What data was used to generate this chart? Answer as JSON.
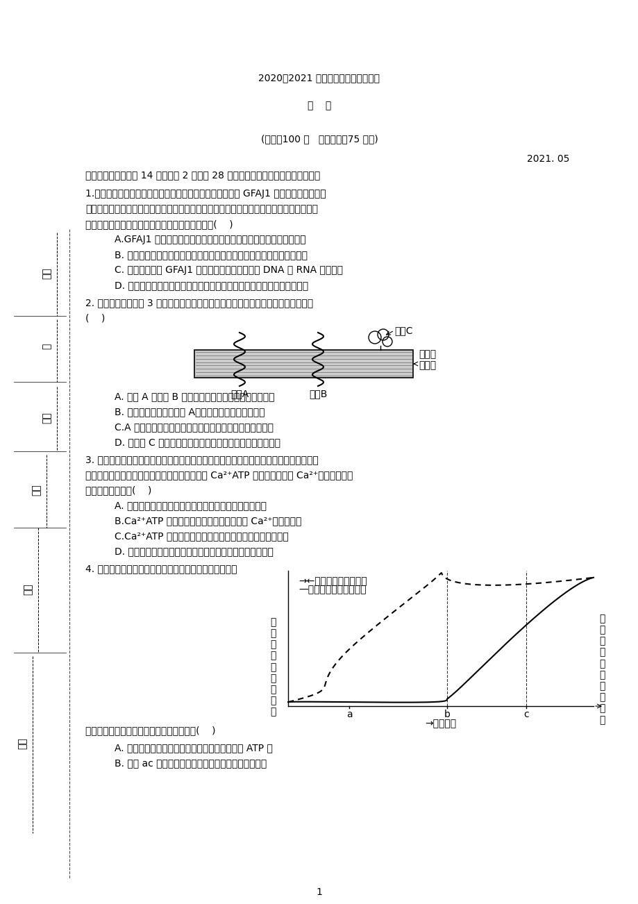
{
  "bg_color": [
    255,
    255,
    255
  ],
  "title1": "2020～2021 学年高三年级模拟考试卷",
  "title2": "生    物",
  "subtitle": "(满分：100 分   考试时间：75 分钟)",
  "date": "2021. 05",
  "page_num": "1",
  "left_labels": [
    "学号",
    "级",
    "姓名",
    "班级",
    "学校",
    "区县"
  ],
  "section1_bold": "一、单项选择题：共 14 题，每题 2 分，共 28 分。每题只有一个选项最符合题意。",
  "q1_lines": [
    "1.科学家在加利福尼亚州东部的莫诺湖里发现了一种被称作 GFAJ1 的细菌，这种细菌能",
    "利用牀来代替磷元素构筑生命分子，进行一些关键的生化反应。已知在元素周期表中，牀排",
    "在磷下方，两者化学性质相似。下列叙述错误的是(    )"
  ],
  "q1_opts": [
    "A.GFAJ1 细菌中含量较多的六种元素可能是碳、氢、氧、氮、牀、硫",
    "B. 牀对多数生物有毒，可能是因为牀能夠替代磷参与生化反应，导致混乱",
    "C. 牀元素存在于 GFAJ1 细菌细胞膜、核糖体以及 DNA 和 RNA 等物质中",
    "D. 该细菌的分泌蛋白在核糖体上合成后，需经过内质网和高尔基体的加工"
  ],
  "q2_line1": "2. 下图表示细胞膜上 3 种膜蛋白与磷脂双分子层之间的位置关系。下列叙述正确的是",
  "q2_bracket": "(    )",
  "q2_opts": [
    "A. 蛋白 A 和蛋白 B 的跨膜区段主要由亲水性氨基酸构成",
    "B. 用双缩脿试剂鉴定蛋白 A，需用水浴加热才能呈紫色",
    "C.A 蛋白在核糖体上合成，需要经过内质网、高尔基体加工",
    "D. 若蛋白 C 具有催化功能，高温可通过破坏肽键影响其活性"
  ],
  "q3_lines": [
    "3. 肌浆网是肌细胞的钙离子库，肌细胞膜兴奋引起肌浆网上钙离子通道打开，大量钙离子",
    "子进入细胞质，引起肌肉收缩后，肌浆网膜上的 Ca²⁺ATP 酶将细胞质中的 Ca²⁺运回肌浆网。",
    "下列叙述错误的是(    )"
  ],
  "q3_opts": [
    "A. 钙离子通过钙离子通道进入细胞质的方式属于协助扩散",
    "B.Ca²⁺ATP 酶以主动运输方式将细胞质中的 Ca²⁺运回肌浆网",
    "C.Ca²⁺ATP 酶在运输钙离子的过程中会发生空间结构的变化",
    "D. 肌细胞中钙离子进出肌浆网的过程体现肌浆网膜的流动性"
  ],
  "q4_line": "4. 右图为研究人体运动强度与氧气消耗速率、血液中乳酸",
  "q4a_line": "含量的关系的研究结果，下列叙述正确的是(    )",
  "q4_opts": [
    "A. 有氧呼吸时，葡萄糖所释放的能量主要存储在 ATP 中",
    "B. 整个 ac 运动阶段，产生的二氧化碳全部来自线粒体"
  ],
  "graph_legend1": "→←氧气消耗速率相对值",
  "graph_legend2": "—血液中乳酸含量相对值",
  "graph_ylabel_left": "氧\n气\n消\n耗\n速\n率\n相\n对\n值",
  "graph_ylabel_right": "血\n液\n中\n乳\n酸\n含\n量\n相\n对\n值",
  "graph_xlabel": "运动强度",
  "graph_ticks": [
    "a",
    "b",
    "c"
  ]
}
